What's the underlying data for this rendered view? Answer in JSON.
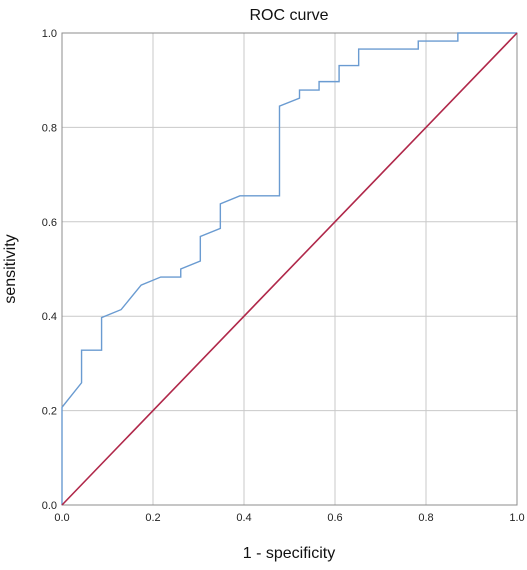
{
  "chart_data": {
    "type": "line",
    "title": "ROC curve",
    "xlabel": "1 - specificity",
    "ylabel": "sensitivity",
    "xlim": [
      0,
      1
    ],
    "ylim": [
      0,
      1
    ],
    "x_ticks": [
      "0.0",
      "0.2",
      "0.4",
      "0.6",
      "0.8",
      "1.0"
    ],
    "y_ticks": [
      "0.0",
      "0.2",
      "0.4",
      "0.6",
      "0.8",
      "1.0"
    ],
    "grid": true,
    "legend": "none",
    "series": [
      {
        "color": "#6a9bd1",
        "style": "step",
        "points": [
          [
            0.0,
            0.0
          ],
          [
            0.0,
            0.207
          ],
          [
            0.043,
            0.259
          ],
          [
            0.043,
            0.328
          ],
          [
            0.087,
            0.328
          ],
          [
            0.087,
            0.397
          ],
          [
            0.13,
            0.414
          ],
          [
            0.174,
            0.466
          ],
          [
            0.217,
            0.483
          ],
          [
            0.261,
            0.483
          ],
          [
            0.261,
            0.5
          ],
          [
            0.304,
            0.517
          ],
          [
            0.304,
            0.569
          ],
          [
            0.348,
            0.586
          ],
          [
            0.348,
            0.638
          ],
          [
            0.391,
            0.655
          ],
          [
            0.478,
            0.655
          ],
          [
            0.478,
            0.845
          ],
          [
            0.522,
            0.862
          ],
          [
            0.522,
            0.879
          ],
          [
            0.565,
            0.879
          ],
          [
            0.565,
            0.897
          ],
          [
            0.609,
            0.897
          ],
          [
            0.609,
            0.931
          ],
          [
            0.652,
            0.931
          ],
          [
            0.652,
            0.966
          ],
          [
            0.783,
            0.966
          ],
          [
            0.783,
            0.983
          ],
          [
            0.87,
            0.983
          ],
          [
            0.87,
            1.0
          ],
          [
            1.0,
            1.0
          ]
        ]
      },
      {
        "color": "#b0284a",
        "style": "line",
        "points": [
          [
            0.0,
            0.0
          ],
          [
            1.0,
            1.0
          ]
        ]
      }
    ]
  }
}
